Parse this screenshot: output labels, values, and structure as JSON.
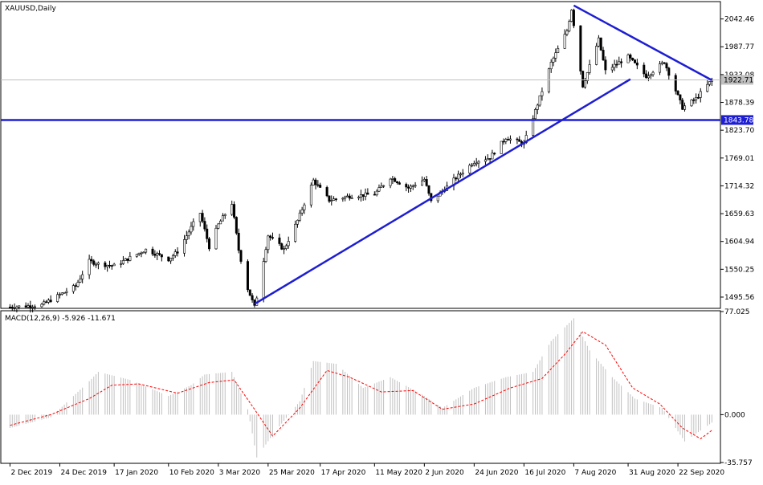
{
  "main_panel": {
    "title": "XAUUSD,Daily",
    "price_labels": [
      "2042.46",
      "1987.77",
      "1933.08",
      "1878.39",
      "1823.70",
      "1769.01",
      "1714.32",
      "1659.63",
      "1604.94",
      "1550.25",
      "1495.56"
    ],
    "current_price_tag": "1922.71",
    "support_tag": "1843.78",
    "colors": {
      "trendline": "#1e1ed2",
      "candle_up": "#ffffff",
      "candle_down": "#000000",
      "current_line": "#c0c0c0"
    }
  },
  "macd_panel": {
    "title": "MACD(12,26,9) -5.926 -11.671",
    "scale_labels": [
      "77.025",
      "0.000",
      "-35.757"
    ],
    "colors": {
      "histogram": "#c0c0c0",
      "signal": "#ff0000"
    }
  },
  "x_axis_labels": [
    "2 Dec 2019",
    "24 Dec 2019",
    "17 Jan 2020",
    "10 Feb 2020",
    "3 Mar 2020",
    "25 Mar 2020",
    "17 Apr 2020",
    "11 May 2020",
    "2 Jun 2020",
    "24 Jun 2020",
    "16 Jul 2020",
    "7 Aug 2020",
    "31 Aug 2020",
    "22 Sep 2020"
  ],
  "chart_data": [
    {
      "type": "candlestick",
      "symbol": "XAUUSD",
      "timeframe": "Daily",
      "ylim": [
        1475,
        2075
      ],
      "close_series": [
        {
          "date": "2019-12-02",
          "close": 1476
        },
        {
          "date": "2019-12-16",
          "close": 1480
        },
        {
          "date": "2019-12-24",
          "close": 1500
        },
        {
          "date": "2019-12-31",
          "close": 1517
        },
        {
          "date": "2020-01-06",
          "close": 1566
        },
        {
          "date": "2020-01-10",
          "close": 1561
        },
        {
          "date": "2020-01-17",
          "close": 1557
        },
        {
          "date": "2020-01-31",
          "close": 1589
        },
        {
          "date": "2020-02-10",
          "close": 1570
        },
        {
          "date": "2020-02-14",
          "close": 1585
        },
        {
          "date": "2020-02-21",
          "close": 1640
        },
        {
          "date": "2020-02-24",
          "close": 1661
        },
        {
          "date": "2020-02-28",
          "close": 1594
        },
        {
          "date": "2020-03-03",
          "close": 1638
        },
        {
          "date": "2020-03-09",
          "close": 1680
        },
        {
          "date": "2020-03-12",
          "close": 1588
        },
        {
          "date": "2020-03-16",
          "close": 1512
        },
        {
          "date": "2020-03-19",
          "close": 1476
        },
        {
          "date": "2020-03-20",
          "close": 1496
        },
        {
          "date": "2020-03-25",
          "close": 1617
        },
        {
          "date": "2020-04-01",
          "close": 1589
        },
        {
          "date": "2020-04-07",
          "close": 1646
        },
        {
          "date": "2020-04-14",
          "close": 1725
        },
        {
          "date": "2020-04-21",
          "close": 1686
        },
        {
          "date": "2020-04-30",
          "close": 1694
        },
        {
          "date": "2020-05-11",
          "close": 1698
        },
        {
          "date": "2020-05-18",
          "close": 1731
        },
        {
          "date": "2020-05-26",
          "close": 1710
        },
        {
          "date": "2020-06-02",
          "close": 1727
        },
        {
          "date": "2020-06-05",
          "close": 1683
        },
        {
          "date": "2020-06-15",
          "close": 1726
        },
        {
          "date": "2020-06-24",
          "close": 1762
        },
        {
          "date": "2020-07-01",
          "close": 1770
        },
        {
          "date": "2020-07-08",
          "close": 1809
        },
        {
          "date": "2020-07-16",
          "close": 1797
        },
        {
          "date": "2020-07-24",
          "close": 1901
        },
        {
          "date": "2020-07-28",
          "close": 1956
        },
        {
          "date": "2020-08-04",
          "close": 2019
        },
        {
          "date": "2020-08-06",
          "close": 2062
        },
        {
          "date": "2020-08-11",
          "close": 1911
        },
        {
          "date": "2020-08-18",
          "close": 2002
        },
        {
          "date": "2020-08-21",
          "close": 1940
        },
        {
          "date": "2020-08-31",
          "close": 1968
        },
        {
          "date": "2020-09-08",
          "close": 1930
        },
        {
          "date": "2020-09-16",
          "close": 1958
        },
        {
          "date": "2020-09-24",
          "close": 1868
        },
        {
          "date": "2020-09-30",
          "close": 1886
        },
        {
          "date": "2020-10-07",
          "close": 1922.71
        }
      ],
      "trendlines": [
        {
          "name": "rising support",
          "from": {
            "date": "2020-03-19",
            "value": 1482
          },
          "to": {
            "date": "2020-09-01",
            "value": 1924
          }
        },
        {
          "name": "falling resistance",
          "from": {
            "date": "2020-08-07",
            "value": 2069
          },
          "to": {
            "date": "2020-10-07",
            "value": 1922
          }
        },
        {
          "name": "horizontal support",
          "value": 1843.78
        }
      ]
    },
    {
      "type": "macd",
      "params": "12,26,9",
      "main_value": -5.926,
      "signal_value": -11.671,
      "ylim": [
        -35.757,
        77.025
      ],
      "histogram": [
        {
          "date": "2019-12-02",
          "value": -10
        },
        {
          "date": "2019-12-20",
          "value": -2
        },
        {
          "date": "2020-01-06",
          "value": 25
        },
        {
          "date": "2020-01-10",
          "value": 32
        },
        {
          "date": "2020-01-24",
          "value": 26
        },
        {
          "date": "2020-02-10",
          "value": 14
        },
        {
          "date": "2020-02-20",
          "value": 22
        },
        {
          "date": "2020-02-26",
          "value": 30
        },
        {
          "date": "2020-03-09",
          "value": 32
        },
        {
          "date": "2020-03-16",
          "value": 4
        },
        {
          "date": "2020-03-20",
          "value": -32
        },
        {
          "date": "2020-03-27",
          "value": -15
        },
        {
          "date": "2020-04-08",
          "value": 10
        },
        {
          "date": "2020-04-14",
          "value": 40
        },
        {
          "date": "2020-04-24",
          "value": 38
        },
        {
          "date": "2020-05-06",
          "value": 20
        },
        {
          "date": "2020-05-18",
          "value": 28
        },
        {
          "date": "2020-06-01",
          "value": 15
        },
        {
          "date": "2020-06-10",
          "value": 5
        },
        {
          "date": "2020-06-24",
          "value": 20
        },
        {
          "date": "2020-07-08",
          "value": 28
        },
        {
          "date": "2020-07-20",
          "value": 32
        },
        {
          "date": "2020-07-28",
          "value": 55
        },
        {
          "date": "2020-08-07",
          "value": 72
        },
        {
          "date": "2020-08-14",
          "value": 48
        },
        {
          "date": "2020-08-24",
          "value": 28
        },
        {
          "date": "2020-09-03",
          "value": 12
        },
        {
          "date": "2020-09-15",
          "value": 5
        },
        {
          "date": "2020-09-25",
          "value": -20
        },
        {
          "date": "2020-10-07",
          "value": -6
        }
      ],
      "signal": [
        {
          "date": "2019-12-02",
          "value": -8
        },
        {
          "date": "2019-12-20",
          "value": 0
        },
        {
          "date": "2020-01-06",
          "value": 12
        },
        {
          "date": "2020-01-16",
          "value": 22
        },
        {
          "date": "2020-01-28",
          "value": 23
        },
        {
          "date": "2020-02-14",
          "value": 16
        },
        {
          "date": "2020-02-28",
          "value": 24
        },
        {
          "date": "2020-03-10",
          "value": 26
        },
        {
          "date": "2020-03-19",
          "value": 4
        },
        {
          "date": "2020-03-27",
          "value": -16
        },
        {
          "date": "2020-04-08",
          "value": 5
        },
        {
          "date": "2020-04-20",
          "value": 33
        },
        {
          "date": "2020-04-30",
          "value": 28
        },
        {
          "date": "2020-05-14",
          "value": 17
        },
        {
          "date": "2020-05-28",
          "value": 18
        },
        {
          "date": "2020-06-10",
          "value": 4
        },
        {
          "date": "2020-06-24",
          "value": 8
        },
        {
          "date": "2020-07-10",
          "value": 20
        },
        {
          "date": "2020-07-24",
          "value": 27
        },
        {
          "date": "2020-08-03",
          "value": 45
        },
        {
          "date": "2020-08-11",
          "value": 62
        },
        {
          "date": "2020-08-21",
          "value": 52
        },
        {
          "date": "2020-09-02",
          "value": 20
        },
        {
          "date": "2020-09-14",
          "value": 8
        },
        {
          "date": "2020-09-24",
          "value": -10
        },
        {
          "date": "2020-10-02",
          "value": -18
        },
        {
          "date": "2020-10-07",
          "value": -11.671
        }
      ]
    }
  ]
}
